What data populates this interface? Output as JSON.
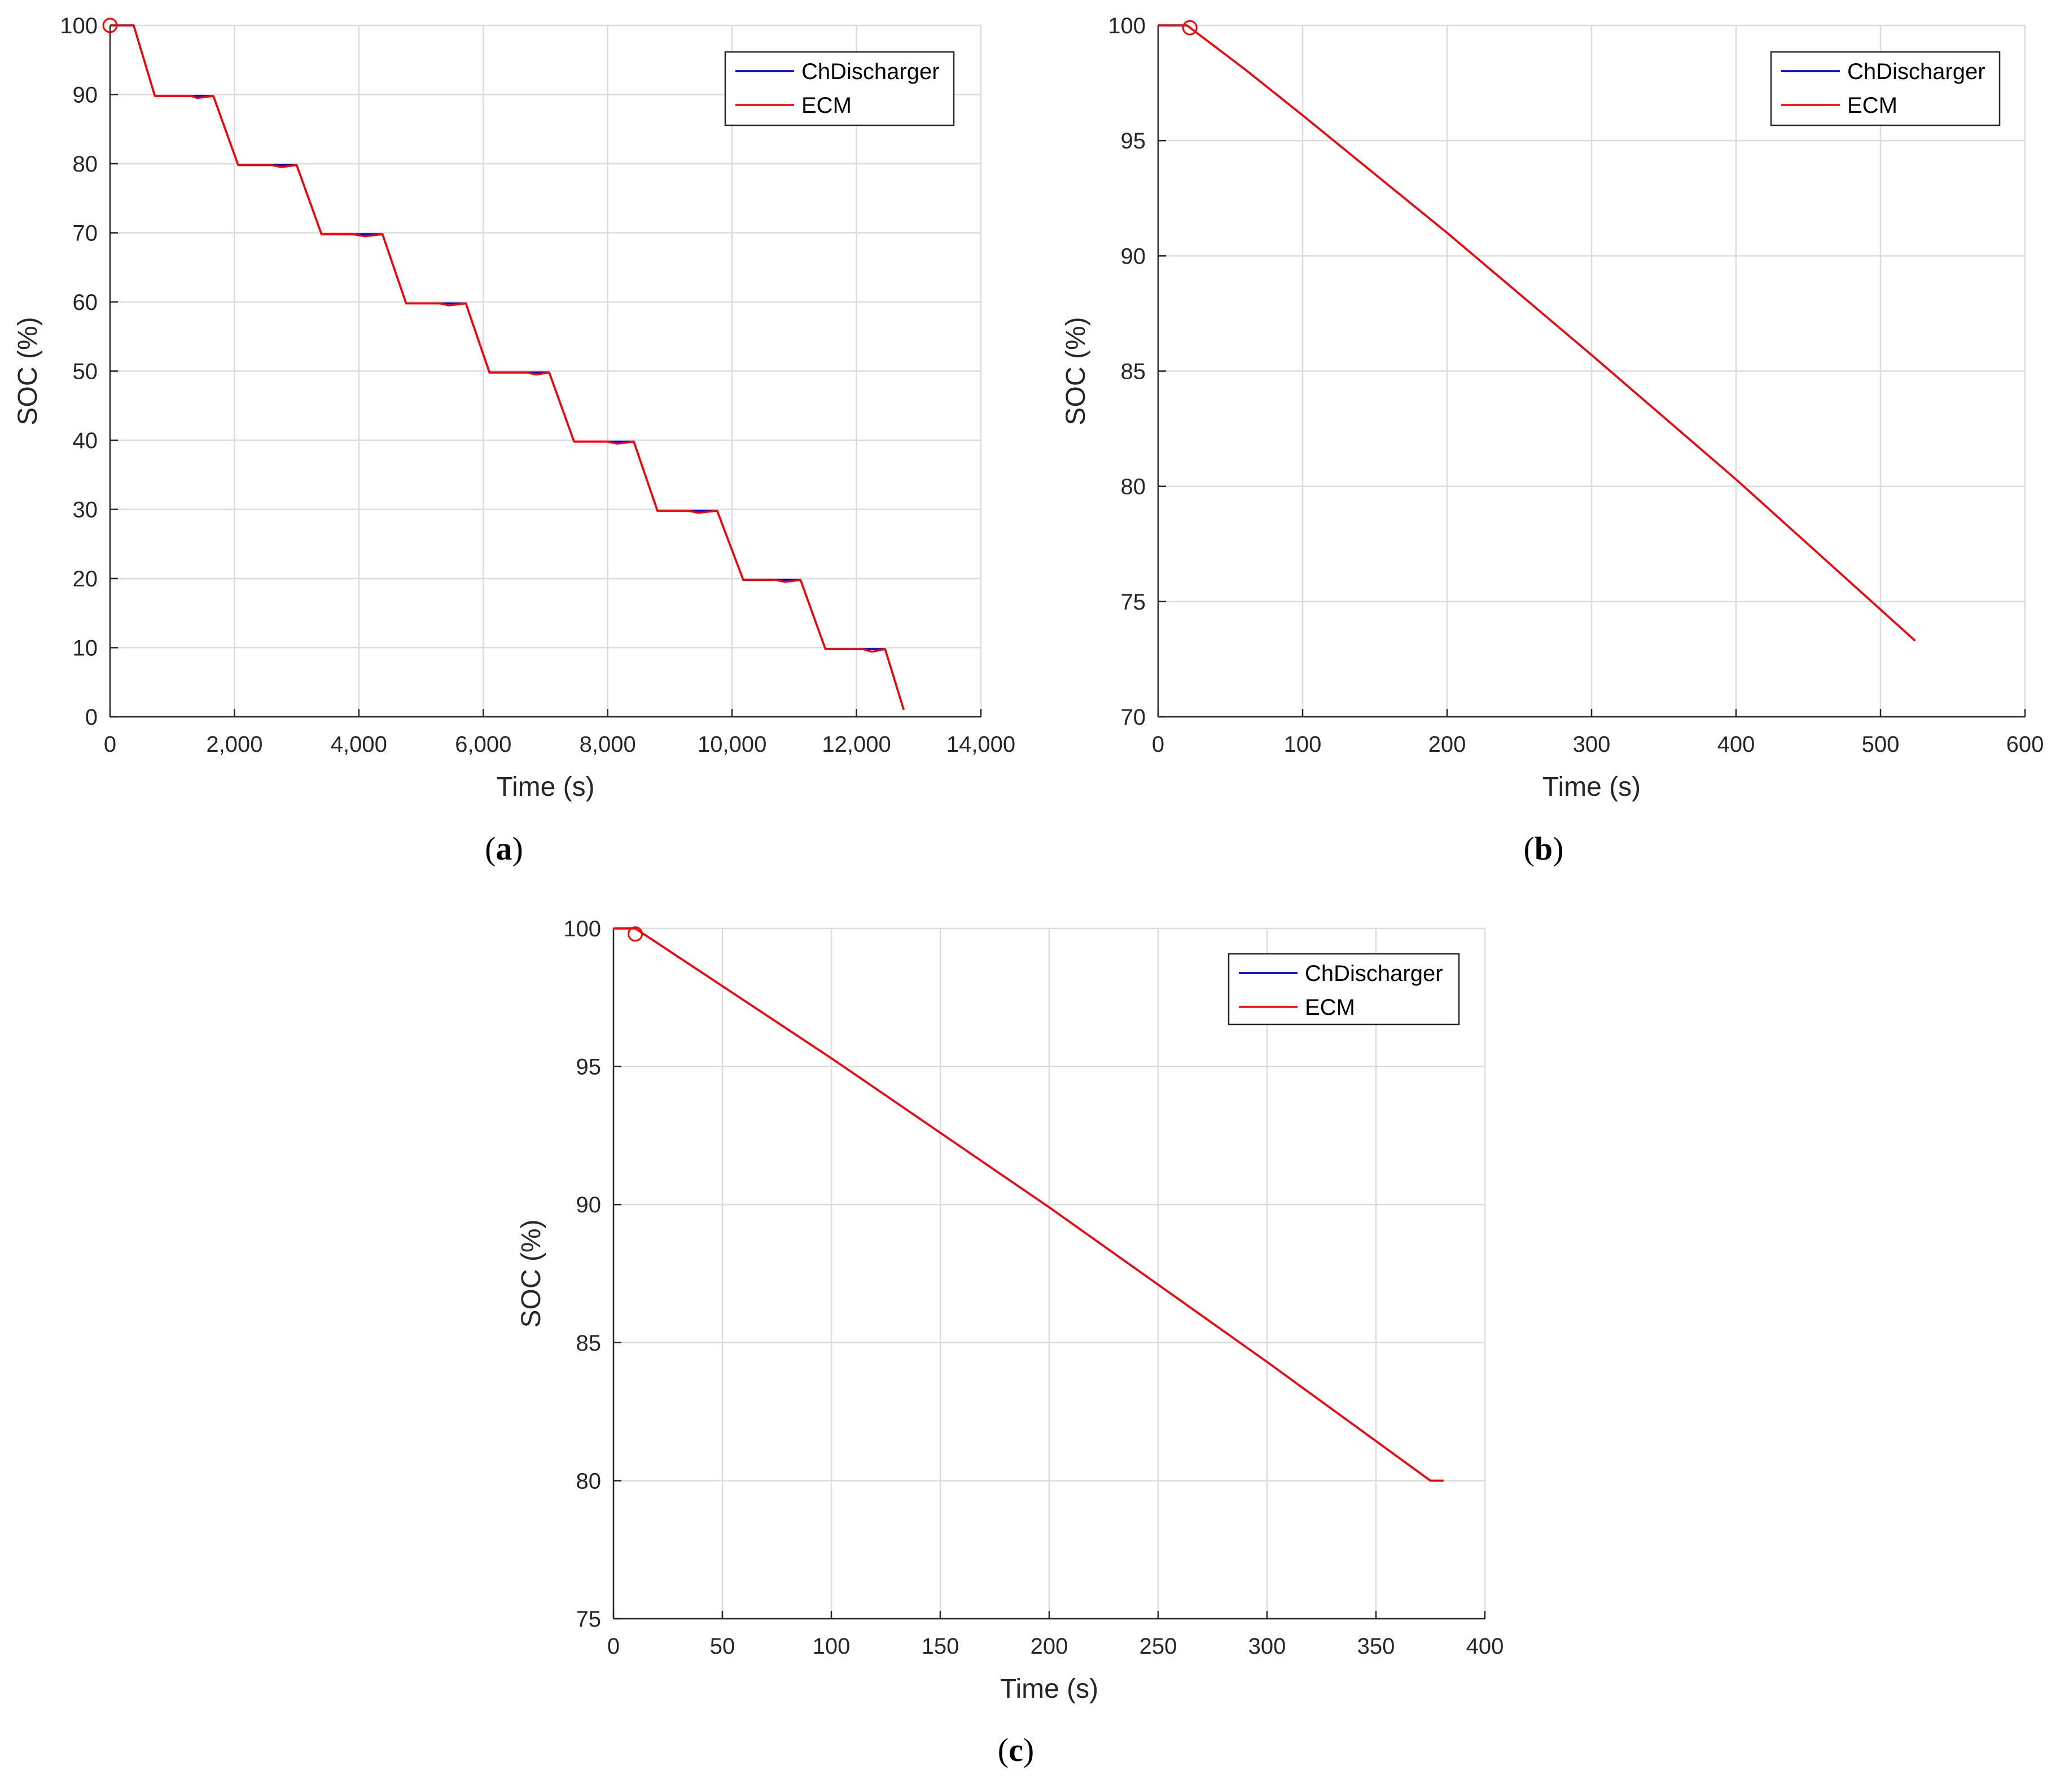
{
  "chart_data": [
    {
      "type": "line",
      "id": "a",
      "caption": "a",
      "xlabel": "Time (s)",
      "ylabel": "SOC (%)",
      "xlim": [
        0,
        14000
      ],
      "ylim": [
        0,
        100
      ],
      "xticks": [
        0,
        2000,
        4000,
        6000,
        8000,
        10000,
        12000,
        14000
      ],
      "xtick_labels": [
        "0",
        "2,000",
        "4,000",
        "6,000",
        "8,000",
        "10,000",
        "12,000",
        "14,000"
      ],
      "yticks": [
        0,
        10,
        20,
        30,
        40,
        50,
        60,
        70,
        80,
        90,
        100
      ],
      "ytick_labels": [
        "0",
        "10",
        "20",
        "30",
        "40",
        "50",
        "60",
        "70",
        "80",
        "90",
        "100"
      ],
      "grid": true,
      "legend": "top-right",
      "marker": {
        "x": 0,
        "y": 100
      },
      "series": [
        {
          "name": "ChDischarger",
          "color": "#0000cc",
          "x": [
            0,
            380,
            720,
            1660,
            2060,
            3000,
            3400,
            4380,
            4760,
            5720,
            6100,
            7060,
            7460,
            8420,
            8800,
            9760,
            10180,
            11100,
            11500,
            12460,
            12760
          ],
          "y": [
            100,
            100,
            89.8,
            89.8,
            79.8,
            79.8,
            69.8,
            69.8,
            59.8,
            59.8,
            49.8,
            49.8,
            39.8,
            39.8,
            29.8,
            29.8,
            19.8,
            19.8,
            9.8,
            9.8,
            1
          ]
        },
        {
          "name": "ECM",
          "color": "#ff0000",
          "x": [
            0,
            380,
            720,
            1300,
            1400,
            1660,
            2060,
            2600,
            2750,
            3000,
            3400,
            3900,
            4100,
            4380,
            4760,
            5300,
            5450,
            5720,
            6100,
            6700,
            6850,
            7060,
            7460,
            8000,
            8150,
            8420,
            8800,
            9300,
            9450,
            9760,
            10180,
            10700,
            10850,
            11100,
            11500,
            12100,
            12250,
            12460,
            12760
          ],
          "y": [
            100,
            100,
            89.8,
            89.8,
            89.5,
            89.8,
            79.8,
            79.8,
            79.5,
            79.8,
            69.8,
            69.8,
            69.5,
            69.8,
            59.8,
            59.8,
            59.5,
            59.8,
            49.8,
            49.8,
            49.5,
            49.8,
            39.8,
            39.8,
            39.5,
            39.8,
            29.8,
            29.8,
            29.5,
            29.8,
            19.8,
            19.8,
            19.5,
            19.8,
            9.8,
            9.8,
            9.4,
            9.8,
            1
          ]
        }
      ]
    },
    {
      "type": "line",
      "id": "b",
      "caption": "b",
      "xlabel": "Time (s)",
      "ylabel": "SOC (%)",
      "xlim": [
        0,
        600
      ],
      "ylim": [
        70,
        100
      ],
      "xticks": [
        0,
        100,
        200,
        300,
        400,
        500,
        600
      ],
      "xtick_labels": [
        "0",
        "100",
        "200",
        "300",
        "400",
        "500",
        "600"
      ],
      "yticks": [
        70,
        75,
        80,
        85,
        90,
        95,
        100
      ],
      "ytick_labels": [
        "70",
        "75",
        "80",
        "85",
        "90",
        "95",
        "100"
      ],
      "grid": true,
      "legend": "top-right",
      "marker": {
        "x": 22,
        "y": 99.9
      },
      "series": [
        {
          "name": "ChDischarger",
          "color": "#0000cc",
          "x": [
            0,
            20,
            60,
            100,
            200,
            300,
            400,
            524
          ],
          "y": [
            100,
            100,
            98.1,
            96.1,
            91.0,
            85.7,
            80.3,
            73.3
          ]
        },
        {
          "name": "ECM",
          "color": "#ff0000",
          "x": [
            0,
            20,
            60,
            100,
            200,
            300,
            400,
            524
          ],
          "y": [
            100,
            100,
            98.1,
            96.1,
            91.0,
            85.7,
            80.3,
            73.3
          ]
        }
      ]
    },
    {
      "type": "line",
      "id": "c",
      "caption": "c",
      "xlabel": "Time (s)",
      "ylabel": "SOC (%)",
      "xlim": [
        0,
        400
      ],
      "ylim": [
        75,
        100
      ],
      "xticks": [
        0,
        50,
        100,
        150,
        200,
        250,
        300,
        350,
        400
      ],
      "xtick_labels": [
        "0",
        "50",
        "100",
        "150",
        "200",
        "250",
        "300",
        "350",
        "400"
      ],
      "yticks": [
        75,
        80,
        85,
        90,
        95,
        100
      ],
      "ytick_labels": [
        "75",
        "80",
        "85",
        "90",
        "95",
        "100"
      ],
      "grid": true,
      "legend": "top-right",
      "marker": {
        "x": 10,
        "y": 99.8
      },
      "series": [
        {
          "name": "ChDischarger",
          "color": "#0000cc",
          "x": [
            0,
            10,
            100,
            200,
            300,
            375,
            381
          ],
          "y": [
            100,
            100,
            95.3,
            89.9,
            84.3,
            80.0,
            80.0
          ]
        },
        {
          "name": "ECM",
          "color": "#ff0000",
          "x": [
            0,
            10,
            100,
            200,
            300,
            375,
            381
          ],
          "y": [
            100,
            100,
            95.3,
            89.9,
            84.3,
            80.0,
            80.0
          ]
        }
      ]
    }
  ]
}
